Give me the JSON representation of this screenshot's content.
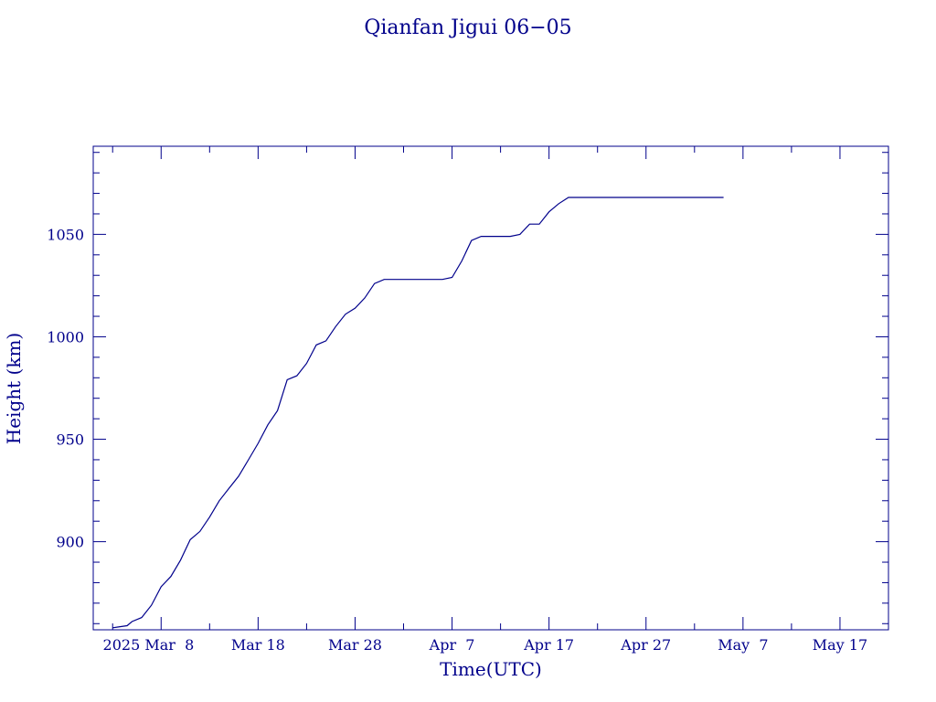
{
  "chart_data": {
    "type": "line",
    "title": "Qianfan Jigui 06−05",
    "xlabel": "Time(UTC)",
    "ylabel": "Height (km)",
    "x_tick_labels": [
      "2025 Mar  8",
      "Mar 18",
      "Mar 28",
      "Apr  7",
      "Apr 17",
      "Apr 27",
      "May  7",
      "May 17"
    ],
    "x_tick_dates": [
      "2025-03-08",
      "2025-03-18",
      "2025-03-28",
      "2025-04-07",
      "2025-04-17",
      "2025-04-27",
      "2025-05-07",
      "2025-05-17"
    ],
    "xlim": [
      "2025-03-01",
      "2025-05-22"
    ],
    "y_ticks": [
      900,
      950,
      1000,
      1050
    ],
    "ylim": [
      857,
      1093
    ],
    "grid": false,
    "colors": {
      "axis": "#00008b",
      "line": "#00008b"
    },
    "series": [
      {
        "x": [
          "2025-03-03",
          "2025-03-04.5",
          "2025-03-05",
          "2025-03-06",
          "2025-03-07",
          "2025-03-08",
          "2025-03-09",
          "2025-03-10",
          "2025-03-11",
          "2025-03-12",
          "2025-03-13",
          "2025-03-14",
          "2025-03-15",
          "2025-03-16",
          "2025-03-17",
          "2025-03-18",
          "2025-03-19",
          "2025-03-20",
          "2025-03-21",
          "2025-03-22",
          "2025-03-23",
          "2025-03-24",
          "2025-03-25",
          "2025-03-26",
          "2025-03-27",
          "2025-03-28",
          "2025-03-29",
          "2025-03-30",
          "2025-03-31",
          "2025-04-01",
          "2025-04-02",
          "2025-04-03",
          "2025-04-04",
          "2025-04-05",
          "2025-04-06",
          "2025-04-07",
          "2025-04-08",
          "2025-04-09",
          "2025-04-10",
          "2025-04-11",
          "2025-04-12",
          "2025-04-13",
          "2025-04-14",
          "2025-04-15",
          "2025-04-16",
          "2025-04-17",
          "2025-04-18",
          "2025-04-19",
          "2025-04-20",
          "2025-04-21",
          "2025-04-25",
          "2025-04-30",
          "2025-05-05"
        ],
        "y": [
          858,
          859,
          861,
          863,
          869,
          878,
          883,
          891,
          901,
          905,
          912,
          920,
          926,
          932,
          940,
          948,
          957,
          964,
          979,
          981,
          987,
          996,
          998,
          1005,
          1011,
          1014,
          1019,
          1026,
          1028,
          1028,
          1028,
          1028,
          1028,
          1028,
          1028,
          1029,
          1037,
          1047,
          1049,
          1049,
          1049,
          1049,
          1050,
          1055,
          1055,
          1061,
          1065,
          1068,
          1068,
          1068,
          1068,
          1068,
          1068
        ]
      }
    ]
  }
}
